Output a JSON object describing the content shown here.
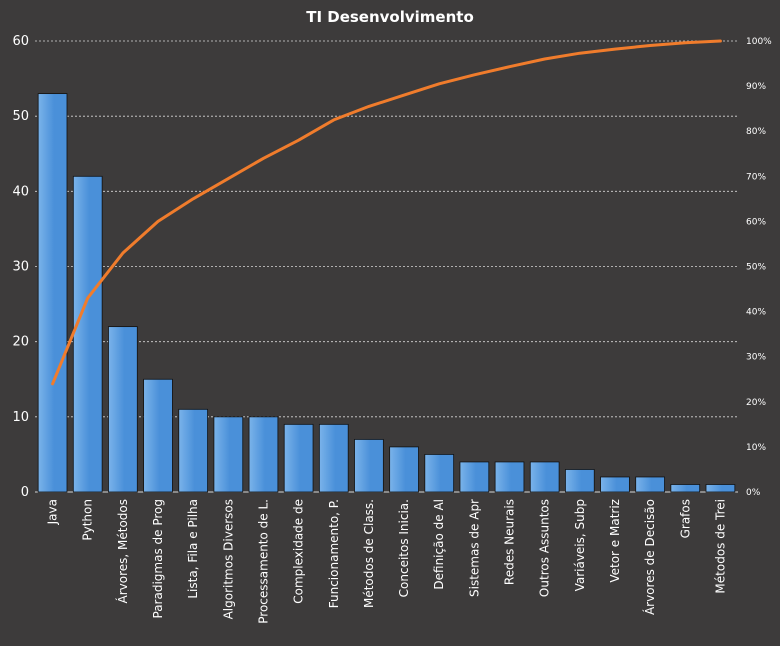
{
  "chart_data": {
    "type": "bar",
    "title": "TI Desenvolvimento",
    "xlabel": "",
    "ylabel": "",
    "categories": [
      "Java",
      "Python",
      "Árvores, Métodos",
      "Paradigmas de Prog",
      "Lista, Fila e Pilha",
      "Algoritmos Diversos",
      "Processamento de L.",
      "Complexidade de",
      "Funcionamento, P.",
      "Métodos de Class.",
      "Conceitos Inicia.",
      "Definição de Al",
      "Sistemas de Apr",
      "Redes Neurais",
      "Outros Assuntos",
      "Variáveis, Subp",
      "Vetor e Matriz",
      "Árvores de Decisão",
      "Grafos",
      "Métodos de Trei"
    ],
    "series": [
      {
        "type": "bar",
        "axis": "left",
        "values": [
          53,
          42,
          22,
          15,
          11,
          10,
          10,
          9,
          9,
          7,
          6,
          5,
          4,
          4,
          4,
          3,
          2,
          2,
          1,
          1
        ]
      },
      {
        "type": "line",
        "axis": "right",
        "values": [
          24,
          43,
          53,
          60,
          65,
          69.5,
          74,
          78,
          82.5,
          85.5,
          88,
          90.5,
          92.5,
          94.3,
          96,
          97.3,
          98.2,
          99,
          99.6,
          100
        ]
      }
    ],
    "ylim": [
      0,
      60
    ],
    "yticks": [
      "0",
      "10",
      "20",
      "30",
      "40",
      "50",
      "60"
    ],
    "y2lim": [
      0,
      100
    ],
    "y2ticks": [
      "0%",
      "10%",
      "20%",
      "30%",
      "40%",
      "50%",
      "60%",
      "70%",
      "80%",
      "90%",
      "100%"
    ],
    "grid": true,
    "legend": "none",
    "colors": {
      "background": "#3d3b3b",
      "bar": "#4a90d9",
      "bar_light": "#7ab3ea",
      "line": "#f07c2c",
      "gridline": "#d8d8d8",
      "text": "#ffffff"
    }
  }
}
